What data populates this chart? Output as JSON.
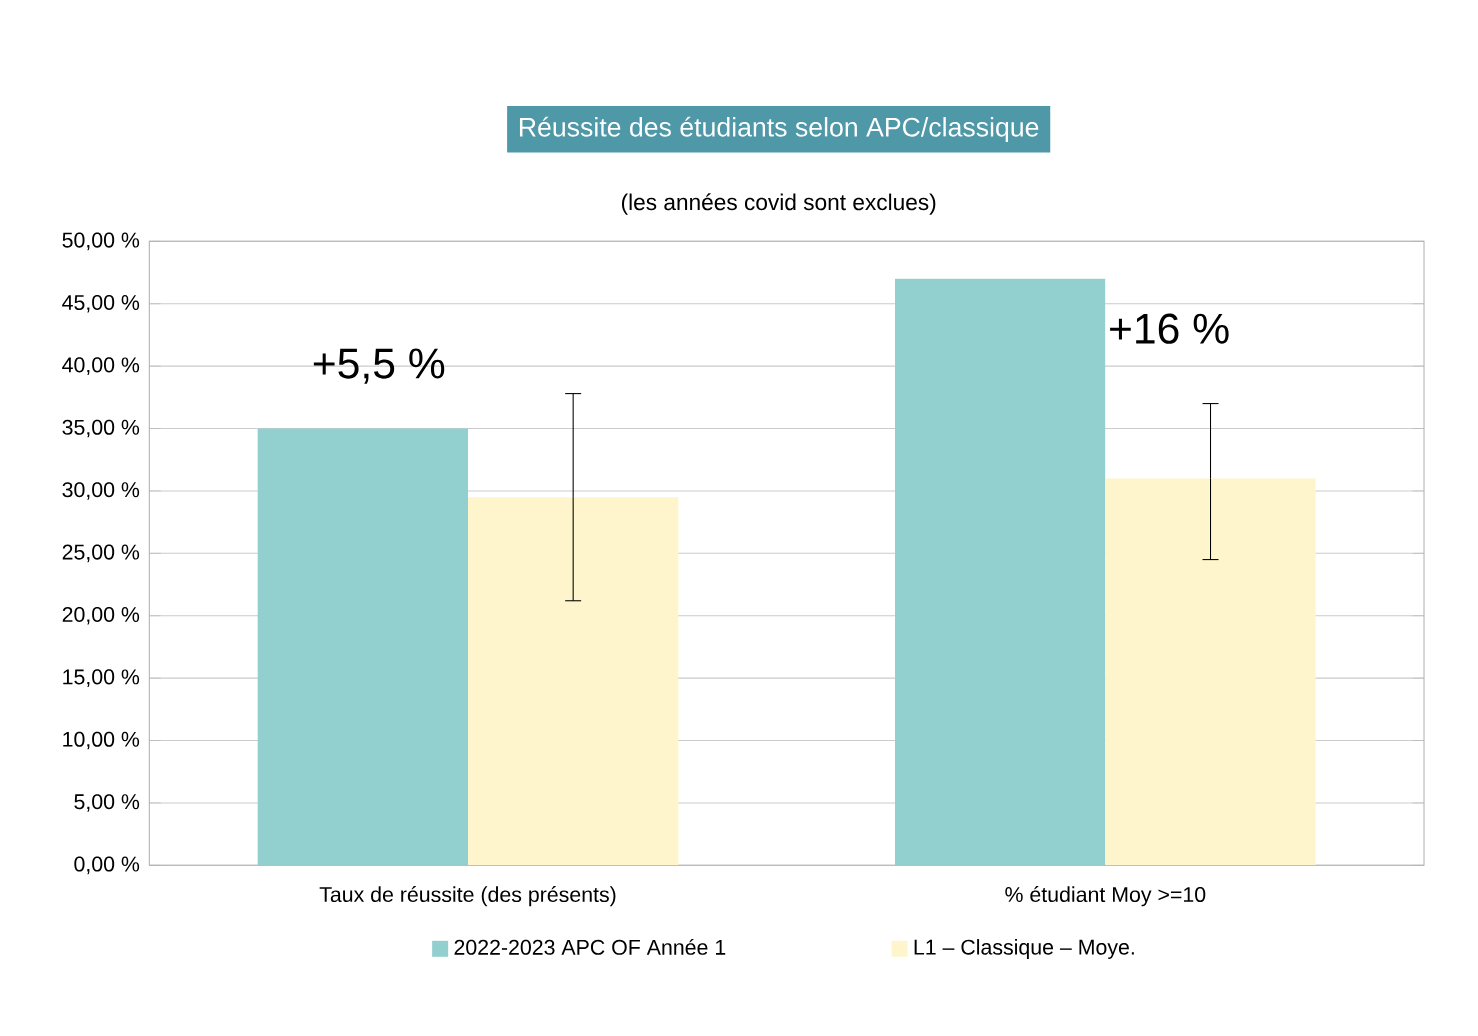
{
  "chart_data": {
    "type": "bar",
    "title": "Réussite des étudiants selon APC/classique",
    "subtitle": "(les années covid sont exclues)",
    "categories": [
      "Taux de réussite (des présents)",
      "% étudiant Moy >=10"
    ],
    "series": [
      {
        "name": "2022-2023 APC OF Année 1",
        "color": "#92cfcf",
        "values": [
          35,
          47
        ]
      },
      {
        "name": "L1 – Classique – Moye.",
        "color": "#fff5cc",
        "values": [
          29.5,
          31
        ],
        "errors": [
          [
            21.2,
            37.8
          ],
          [
            24.5,
            37
          ]
        ]
      }
    ],
    "ylim": [
      0,
      50
    ],
    "yticks": [
      {
        "value": 0,
        "label": "0,00 %"
      },
      {
        "value": 5,
        "label": "5,00 %"
      },
      {
        "value": 10,
        "label": "10,00 %"
      },
      {
        "value": 15,
        "label": "15,00 %"
      },
      {
        "value": 20,
        "label": "20,00 %"
      },
      {
        "value": 25,
        "label": "25,00 %"
      },
      {
        "value": 30,
        "label": "30,00 %"
      },
      {
        "value": 35,
        "label": "35,00 %"
      },
      {
        "value": 40,
        "label": "40,00 %"
      },
      {
        "value": 45,
        "label": "45,00 %"
      },
      {
        "value": 50,
        "label": "50,00 %"
      }
    ],
    "annotations": [
      "+5,5 %",
      "+16 %"
    ],
    "grid": "y",
    "legend": "bottom"
  }
}
